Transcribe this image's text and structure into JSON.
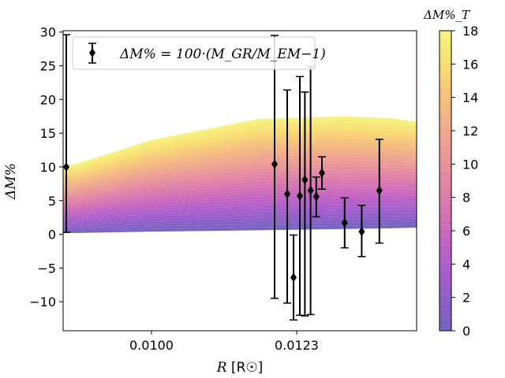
{
  "chart_data": {
    "type": "scatter",
    "title": "",
    "xlabel": "R [R☉]",
    "xlabel_parts": {
      "var": "R",
      "unit": " [R☉]"
    },
    "ylabel": "ΔM%",
    "xlim": [
      0.0086,
      0.0142
    ],
    "ylim": [
      -14.3,
      30.2
    ],
    "x_ticks": [
      0.01,
      0.0123
    ],
    "x_tick_labels": [
      "0.0100",
      "0.0123"
    ],
    "y_ticks": [
      -10,
      -5,
      0,
      5,
      10,
      15,
      20,
      25,
      30
    ],
    "y_tick_labels": [
      "−10",
      "−5",
      "0",
      "5",
      "10",
      "15",
      "20",
      "25",
      "30"
    ],
    "legend": {
      "label": "ΔM% = 100·(M_GR/M_EM−1)",
      "placement": "top-left"
    },
    "series": [
      {
        "name": "ΔM% = 100·(M_GR/M_EM−1)",
        "marker": "diamond",
        "color": "#000000",
        "points": [
          {
            "x": 0.00865,
            "y": 10.0,
            "err_low": 9.7,
            "err_high": 19.6
          },
          {
            "x": 0.01195,
            "y": 10.4,
            "err_low": 19.9,
            "err_high": 19.1
          },
          {
            "x": 0.01215,
            "y": 6.0,
            "err_low": 16.2,
            "err_high": 15.4
          },
          {
            "x": 0.01225,
            "y": -6.4,
            "err_low": 6.3,
            "err_high": 6.3
          },
          {
            "x": 0.01235,
            "y": 5.7,
            "err_low": 17.7,
            "err_high": 17.7
          },
          {
            "x": 0.01243,
            "y": 8.1,
            "err_low": 20.2,
            "err_high": 13.0
          },
          {
            "x": 0.01252,
            "y": 6.5,
            "err_low": 18.4,
            "err_high": 18.4
          },
          {
            "x": 0.01261,
            "y": 5.6,
            "err_low": 3.0,
            "err_high": 2.9
          },
          {
            "x": 0.0127,
            "y": 9.1,
            "err_low": 2.4,
            "err_high": 2.4
          },
          {
            "x": 0.01306,
            "y": 1.7,
            "err_low": 3.7,
            "err_high": 3.7
          },
          {
            "x": 0.01333,
            "y": 0.4,
            "err_low": 3.7,
            "err_high": 3.9
          },
          {
            "x": 0.01361,
            "y": 6.5,
            "err_low": 7.8,
            "err_high": 7.6
          }
        ]
      }
    ],
    "band": {
      "description": "ΔM%_T color-filled band",
      "x": [
        0.0086,
        0.0088,
        0.01,
        0.0117,
        0.0131,
        0.0138,
        0.0142
      ],
      "lower": [
        0.2,
        0.2,
        0.4,
        0.6,
        0.8,
        0.9,
        1.0
      ],
      "upper": [
        10.2,
        10.4,
        14.0,
        17.1,
        17.5,
        17.2,
        16.7
      ]
    },
    "colorbar": {
      "label": "ΔM%_T",
      "min": 0,
      "max": 18,
      "ticks": [
        0,
        2,
        4,
        6,
        8,
        10,
        12,
        14,
        16,
        18
      ],
      "tick_labels": [
        "0",
        "2",
        "4",
        "6",
        "8",
        "10",
        "12",
        "14",
        "16",
        "18"
      ],
      "colors": [
        "#5a4bb5",
        "#7b44c0",
        "#9c43c3",
        "#b84bb8",
        "#cf5ca5",
        "#de7394",
        "#e88b84",
        "#f0a273",
        "#f5bd63",
        "#f8da5a",
        "#f5f26a"
      ]
    }
  }
}
